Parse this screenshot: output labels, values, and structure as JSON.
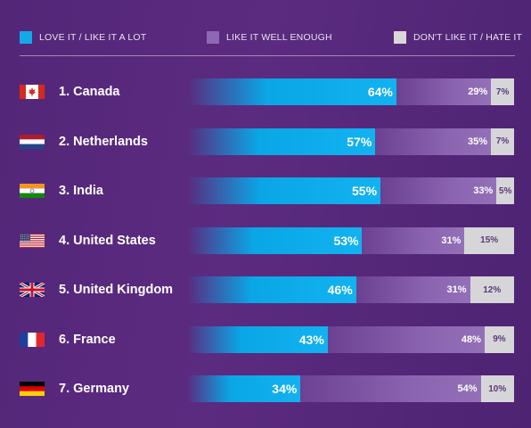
{
  "legend": [
    {
      "label": "LOVE IT / LIKE IT A LOT",
      "color": "#13a9e8"
    },
    {
      "label": "LIKE IT WELL ENOUGH",
      "color": "#8d68b4"
    },
    {
      "label": "DON'T LIKE IT / HATE IT",
      "color": "#d8d8d8"
    }
  ],
  "chart_data": {
    "type": "bar",
    "stacked": true,
    "orientation": "horizontal",
    "categories": [
      "1. Canada",
      "2. Netherlands",
      "3. India",
      "4. United States",
      "5. United Kingdom",
      "6. France",
      "7. Germany"
    ],
    "flags": [
      "canada-flag-icon",
      "netherlands-flag-icon",
      "india-flag-icon",
      "usa-flag-icon",
      "uk-flag-icon",
      "france-flag-icon",
      "germany-flag-icon"
    ],
    "series": [
      {
        "name": "LOVE IT / LIKE IT A LOT",
        "values": [
          64,
          57,
          55,
          53,
          46,
          43,
          34
        ],
        "labels": [
          "64%",
          "57%",
          "55%",
          "53%",
          "46%",
          "43%",
          "34%"
        ]
      },
      {
        "name": "LIKE IT WELL ENOUGH",
        "values": [
          29,
          35,
          33,
          31,
          31,
          48,
          54
        ],
        "labels": [
          "29%",
          "35%",
          "33%",
          "31%",
          "31%",
          "48%",
          "54%"
        ]
      },
      {
        "name": "DON'T LIKE IT / HATE IT",
        "values": [
          7,
          7,
          5,
          15,
          12,
          9,
          10
        ],
        "labels": [
          "7%",
          "7%",
          "5%",
          "15%",
          "12%",
          "9%",
          "10%"
        ]
      }
    ],
    "legend_position": "top",
    "grid": false
  }
}
